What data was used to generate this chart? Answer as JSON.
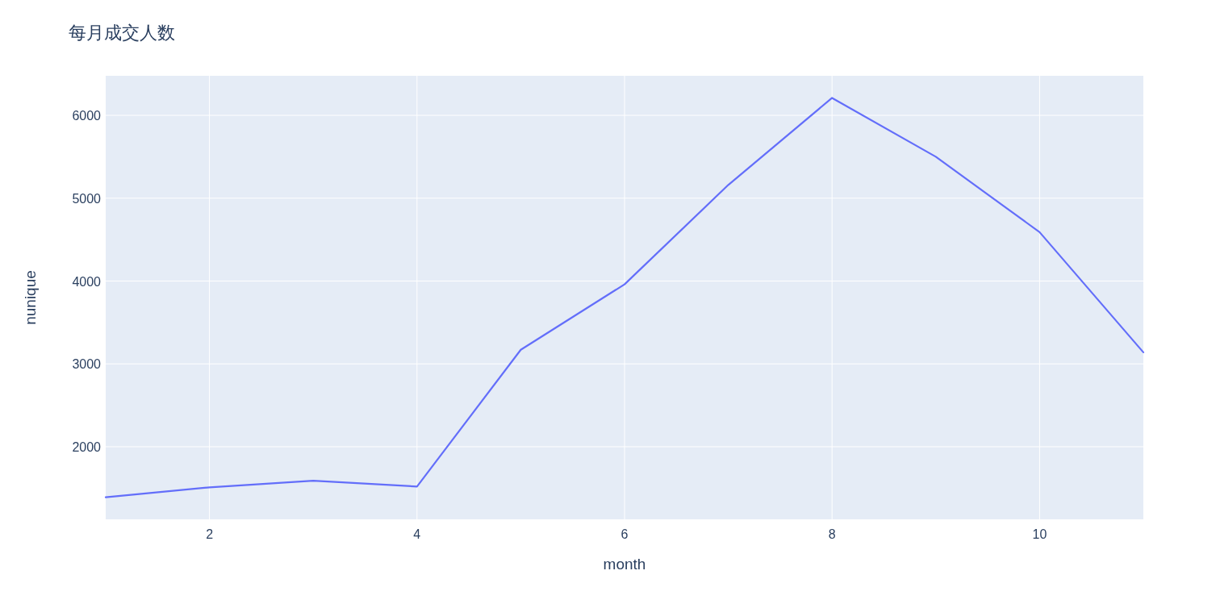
{
  "chart_data": {
    "type": "line",
    "title": "每月成交人数",
    "xlabel": "month",
    "ylabel": "nunique",
    "x": [
      1,
      2,
      3,
      4,
      5,
      6,
      7,
      8,
      9,
      10,
      11
    ],
    "series": [
      {
        "color": "#636efa",
        "values": [
          1390,
          1510,
          1590,
          1520,
          3170,
          3960,
          5160,
          6210,
          5500,
          4590,
          3140
        ]
      }
    ],
    "xlim": [
      1,
      11
    ],
    "xticks": [
      2,
      4,
      6,
      8,
      10
    ],
    "ylim": [
      1124,
      6477
    ],
    "yticks": [
      2000,
      3000,
      4000,
      5000,
      6000
    ],
    "grid": true,
    "marker": "none",
    "line_style": "solid"
  }
}
